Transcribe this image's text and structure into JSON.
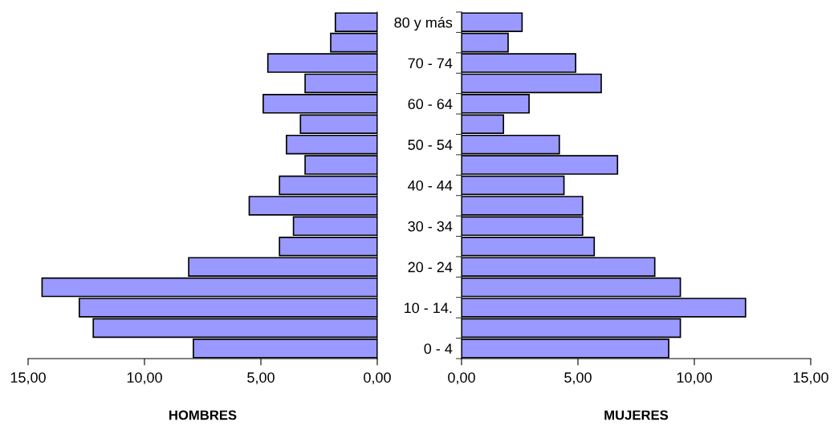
{
  "chart_data": [
    {
      "type": "bar",
      "orientation": "horizontal",
      "xlabel": "HOMBRES",
      "tick_labels": "x",
      "categories": [
        null,
        null,
        null,
        null,
        null,
        null,
        null,
        null,
        null,
        null,
        null,
        null,
        null,
        null,
        null,
        null,
        null
      ],
      "series": [
        {
          "color": "#9999ff",
          "values": [
            1.8,
            2.0,
            4.7,
            3.1,
            4.9,
            3.3,
            3.9,
            3.1,
            4.2,
            5.5,
            3.6,
            4.2,
            8.1,
            14.4,
            12.8,
            12.2,
            7.9
          ]
        }
      ],
      "xlim": [
        15,
        0
      ],
      "xticks": [
        {
          "value": 15,
          "label": "15,00"
        },
        {
          "value": 10,
          "label": "10,00"
        },
        {
          "value": 5,
          "label": "5,00"
        },
        {
          "value": 0,
          "label": "0,00"
        }
      ],
      "grid": false,
      "legend": false
    },
    {
      "type": "bar",
      "orientation": "horizontal",
      "xlabel": "MUJERES",
      "categories": [
        "80 y más",
        null,
        "70 - 74",
        null,
        "60 - 64",
        null,
        "50 - 54",
        null,
        "40 - 44",
        null,
        "30 - 34",
        null,
        "20 - 24",
        null,
        "10 - 14.",
        null,
        "0 - 4"
      ],
      "series": [
        {
          "color": "#9999ff",
          "values": [
            2.6,
            2.0,
            4.9,
            6.0,
            2.9,
            1.8,
            4.2,
            6.7,
            4.4,
            5.2,
            5.2,
            5.7,
            8.3,
            9.4,
            12.2,
            9.4,
            8.9
          ]
        }
      ],
      "xlim": [
        0,
        15
      ],
      "xticks": [
        {
          "value": 0,
          "label": "0,00"
        },
        {
          "value": 5,
          "label": "5,00"
        },
        {
          "value": 10,
          "label": "10,00"
        },
        {
          "value": 15,
          "label": "15,00"
        }
      ],
      "grid": false,
      "legend": false
    }
  ]
}
